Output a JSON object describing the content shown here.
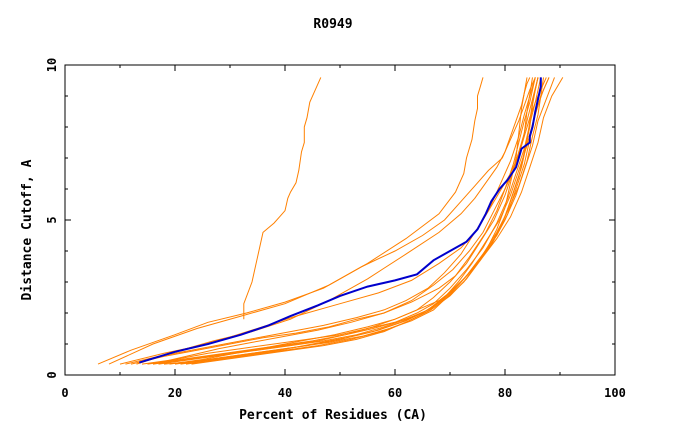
{
  "chart_data": {
    "type": "line",
    "title": "R0949",
    "xlabel": "Percent of Residues (CA)",
    "ylabel": "Distance Cutoff, A",
    "xlim": [
      0,
      100
    ],
    "ylim": [
      0,
      10
    ],
    "x_ticks": [
      0,
      20,
      40,
      60,
      80,
      100
    ],
    "x_tick_labels": [
      "0",
      "20",
      "40",
      "60",
      "80",
      "100"
    ],
    "y_ticks": [
      0,
      5,
      10
    ],
    "y_tick_labels": [
      "0",
      "5",
      "10"
    ],
    "grid": false,
    "colors": {
      "highlight": "#0000cc",
      "others": "#ff8000"
    },
    "highlight": {
      "x": [
        13.5,
        20,
        26,
        32,
        37,
        41,
        46,
        50,
        55,
        60,
        64,
        67,
        70,
        73,
        75,
        76.5,
        77.5,
        79,
        80.5,
        82,
        82.5,
        83,
        84.5,
        84.5,
        85,
        85.5,
        86,
        86.5,
        86.5
      ],
      "y": [
        0.4,
        0.75,
        1.0,
        1.3,
        1.6,
        1.9,
        2.25,
        2.55,
        2.85,
        3.05,
        3.25,
        3.7,
        4.0,
        4.3,
        4.7,
        5.2,
        5.6,
        6.0,
        6.3,
        6.7,
        7.0,
        7.3,
        7.5,
        7.7,
        8.0,
        8.5,
        8.9,
        9.3,
        9.6
      ]
    },
    "series": [
      {
        "x": [
          32.5,
          32.5,
          34,
          35,
          36,
          38,
          39,
          40,
          40.5,
          41,
          42,
          42.5,
          43,
          43.5,
          43.5,
          44,
          44.5,
          45.5,
          46.5
        ],
        "y": [
          1.8,
          2.3,
          3.0,
          3.8,
          4.6,
          4.9,
          5.1,
          5.3,
          5.7,
          5.9,
          6.2,
          6.6,
          7.2,
          7.5,
          8.0,
          8.3,
          8.8,
          9.2,
          9.6
        ]
      },
      {
        "x": [
          6,
          12,
          20,
          26,
          33,
          40,
          47,
          55,
          62,
          68,
          71,
          72.5,
          73,
          74,
          74.5,
          75,
          75,
          75.5,
          76
        ],
        "y": [
          0.35,
          0.8,
          1.3,
          1.7,
          2.0,
          2.35,
          2.8,
          3.6,
          4.4,
          5.2,
          5.9,
          6.5,
          7.0,
          7.6,
          8.2,
          8.6,
          9.0,
          9.3,
          9.6
        ]
      },
      {
        "x": [
          10,
          18,
          26,
          34,
          42,
          50,
          57,
          63,
          68,
          72,
          75,
          77,
          79,
          81,
          82.5,
          83.5,
          84.5,
          85.5,
          86.5,
          87.5
        ],
        "y": [
          0.35,
          0.7,
          1.0,
          1.45,
          1.9,
          2.3,
          2.65,
          3.05,
          3.6,
          4.1,
          4.7,
          5.3,
          5.9,
          6.5,
          7.1,
          7.7,
          8.3,
          8.8,
          9.2,
          9.6
        ]
      },
      {
        "x": [
          8,
          16,
          24,
          32,
          40,
          48,
          54,
          60,
          65,
          69,
          72,
          74.5,
          77,
          79.5,
          81,
          82.5,
          83.5,
          84.5,
          85.5
        ],
        "y": [
          0.35,
          1.0,
          1.5,
          1.9,
          2.3,
          2.9,
          3.5,
          4.0,
          4.5,
          5.0,
          5.6,
          6.1,
          6.6,
          7.0,
          7.6,
          8.2,
          8.7,
          9.2,
          9.6
        ]
      },
      {
        "x": [
          12,
          18,
          24,
          30,
          36,
          42,
          48,
          53,
          58,
          63,
          68,
          71,
          73.5,
          76.5,
          78.5,
          80,
          81.5,
          82.5,
          83.5,
          84,
          85
        ],
        "y": [
          0.35,
          0.6,
          0.8,
          1.0,
          1.2,
          1.35,
          1.55,
          1.8,
          2.0,
          2.35,
          2.8,
          3.2,
          3.8,
          4.6,
          5.3,
          6.0,
          6.6,
          7.2,
          7.8,
          8.5,
          9.6
        ]
      },
      {
        "x": [
          14,
          20,
          26,
          32,
          38,
          44,
          50,
          55,
          60,
          64,
          67,
          70,
          73,
          76,
          78.5,
          80.5,
          82,
          83.5,
          84.5,
          85.5,
          86.5
        ],
        "y": [
          0.35,
          0.5,
          0.7,
          0.85,
          1.0,
          1.15,
          1.3,
          1.5,
          1.7,
          2.0,
          2.3,
          2.8,
          3.4,
          4.1,
          4.9,
          5.7,
          6.5,
          7.3,
          8.1,
          8.8,
          9.6
        ]
      },
      {
        "x": [
          15,
          21,
          27,
          33,
          39,
          45,
          51,
          56,
          61,
          65,
          68.5,
          71.5,
          74.5,
          77.5,
          80,
          82,
          83.5,
          85,
          86,
          87.5,
          89
        ],
        "y": [
          0.35,
          0.5,
          0.65,
          0.8,
          0.95,
          1.1,
          1.3,
          1.5,
          1.75,
          2.0,
          2.4,
          2.9,
          3.5,
          4.2,
          5.0,
          5.8,
          6.6,
          7.4,
          8.2,
          8.9,
          9.6
        ]
      },
      {
        "x": [
          16,
          22,
          28,
          34,
          40,
          46,
          51,
          56,
          60,
          64,
          67,
          70,
          73,
          75.5,
          78,
          80,
          81.5,
          83,
          84,
          85,
          86
        ],
        "y": [
          0.35,
          0.5,
          0.65,
          0.8,
          0.95,
          1.1,
          1.3,
          1.55,
          1.8,
          2.1,
          2.5,
          3.0,
          3.6,
          4.3,
          5.0,
          5.8,
          6.6,
          7.4,
          8.2,
          8.9,
          9.6
        ]
      },
      {
        "x": [
          17,
          23,
          29,
          35,
          41,
          47,
          53,
          58,
          62,
          66,
          69.5,
          72.5,
          75.5,
          78.5,
          81,
          83,
          84.5,
          86,
          87,
          88.5,
          90.5
        ],
        "y": [
          0.35,
          0.5,
          0.65,
          0.8,
          0.95,
          1.1,
          1.3,
          1.55,
          1.8,
          2.1,
          2.6,
          3.1,
          3.7,
          4.4,
          5.1,
          5.9,
          6.7,
          7.5,
          8.3,
          9.0,
          9.6
        ]
      },
      {
        "x": [
          18,
          24,
          30,
          36,
          42,
          48,
          54,
          59,
          63,
          67,
          70,
          73,
          76,
          78.5,
          80.5,
          82.5,
          84,
          85,
          86,
          86.5,
          87
        ],
        "y": [
          0.35,
          0.45,
          0.6,
          0.75,
          0.9,
          1.05,
          1.25,
          1.5,
          1.75,
          2.1,
          2.6,
          3.2,
          3.9,
          4.6,
          5.3,
          6.1,
          6.9,
          7.7,
          8.4,
          9.0,
          9.6
        ]
      },
      {
        "x": [
          19,
          25,
          31,
          37,
          43,
          49,
          55,
          60,
          64,
          68,
          71,
          73.5,
          76,
          78.5,
          80.5,
          82,
          83.5,
          84.5,
          85.5,
          86.5,
          88
        ],
        "y": [
          0.35,
          0.5,
          0.7,
          0.9,
          1.1,
          1.3,
          1.55,
          1.8,
          2.1,
          2.4,
          2.8,
          3.3,
          3.9,
          4.5,
          5.2,
          6.0,
          6.8,
          7.6,
          8.4,
          9.0,
          9.6
        ]
      },
      {
        "x": [
          20,
          26,
          32,
          38,
          44,
          50,
          56,
          61,
          65,
          68.5,
          71.5,
          74,
          76.5,
          78.5,
          80,
          81,
          82,
          82.5,
          83,
          83.5,
          84
        ],
        "y": [
          0.35,
          0.5,
          0.65,
          0.8,
          0.95,
          1.15,
          1.4,
          1.7,
          2.0,
          2.4,
          2.9,
          3.4,
          4.0,
          4.7,
          5.4,
          6.2,
          7.0,
          7.8,
          8.6,
          9.1,
          9.6
        ]
      },
      {
        "x": [
          21,
          27,
          33,
          39,
          45,
          51,
          57,
          62,
          66,
          69.5,
          72.5,
          75,
          77.5,
          79.5,
          81,
          82.5,
          83.5,
          84.5,
          85,
          85.5,
          86
        ],
        "y": [
          0.35,
          0.5,
          0.65,
          0.8,
          1.0,
          1.2,
          1.45,
          1.75,
          2.1,
          2.5,
          3.0,
          3.6,
          4.2,
          4.9,
          5.6,
          6.4,
          7.2,
          8.0,
          8.7,
          9.2,
          9.6
        ]
      },
      {
        "x": [
          22,
          28,
          34,
          40,
          46,
          52,
          57.5,
          62,
          66,
          69,
          71.5,
          74,
          76.5,
          79,
          81,
          82.5,
          84,
          85,
          86,
          87,
          88
        ],
        "y": [
          0.35,
          0.5,
          0.65,
          0.8,
          0.95,
          1.15,
          1.4,
          1.7,
          2.05,
          2.5,
          3.0,
          3.6,
          4.3,
          5.0,
          5.8,
          6.6,
          7.4,
          8.1,
          8.7,
          9.2,
          9.6
        ]
      },
      {
        "x": [
          11,
          17,
          23,
          29,
          35,
          41,
          47,
          53,
          58,
          62,
          66,
          69,
          72,
          74.5,
          77,
          79,
          81,
          82.5,
          83.5,
          84.5,
          85.5
        ],
        "y": [
          0.35,
          0.6,
          0.8,
          1.0,
          1.2,
          1.4,
          1.6,
          1.85,
          2.1,
          2.4,
          2.8,
          3.3,
          3.9,
          4.6,
          5.3,
          6.1,
          6.9,
          7.7,
          8.4,
          9.0,
          9.6
        ]
      },
      {
        "x": [
          23,
          29,
          35,
          41,
          47,
          53,
          58,
          62.5,
          66.5,
          70,
          73,
          75.5,
          78,
          80,
          81.5,
          83,
          84,
          84.5,
          85,
          85.5,
          86
        ],
        "y": [
          0.35,
          0.5,
          0.65,
          0.8,
          0.95,
          1.15,
          1.4,
          1.75,
          2.1,
          2.55,
          3.1,
          3.7,
          4.4,
          5.1,
          5.9,
          6.7,
          7.5,
          8.2,
          8.8,
          9.2,
          9.6
        ]
      },
      {
        "x": [
          13,
          20,
          27,
          34,
          41,
          48,
          55,
          62,
          68,
          72,
          74.5,
          76.5,
          78.5,
          80,
          81,
          82,
          83,
          83.5,
          84,
          84.5
        ],
        "y": [
          0.35,
          0.75,
          1.1,
          1.4,
          1.8,
          2.4,
          3.1,
          3.9,
          4.6,
          5.2,
          5.7,
          6.2,
          6.7,
          7.2,
          7.7,
          8.2,
          8.7,
          9.1,
          9.4,
          9.6
        ]
      },
      {
        "x": [
          16,
          22,
          28,
          34,
          40,
          46,
          52,
          58,
          63,
          67,
          70.5,
          73.5,
          76,
          78,
          80,
          81.5,
          82.5,
          83.5,
          84.5,
          85,
          85.5
        ],
        "y": [
          0.35,
          0.6,
          0.85,
          1.05,
          1.25,
          1.45,
          1.7,
          2.0,
          2.4,
          2.9,
          3.4,
          4.0,
          4.6,
          5.3,
          6.0,
          6.8,
          7.5,
          8.2,
          8.8,
          9.2,
          9.6
        ]
      }
    ]
  }
}
